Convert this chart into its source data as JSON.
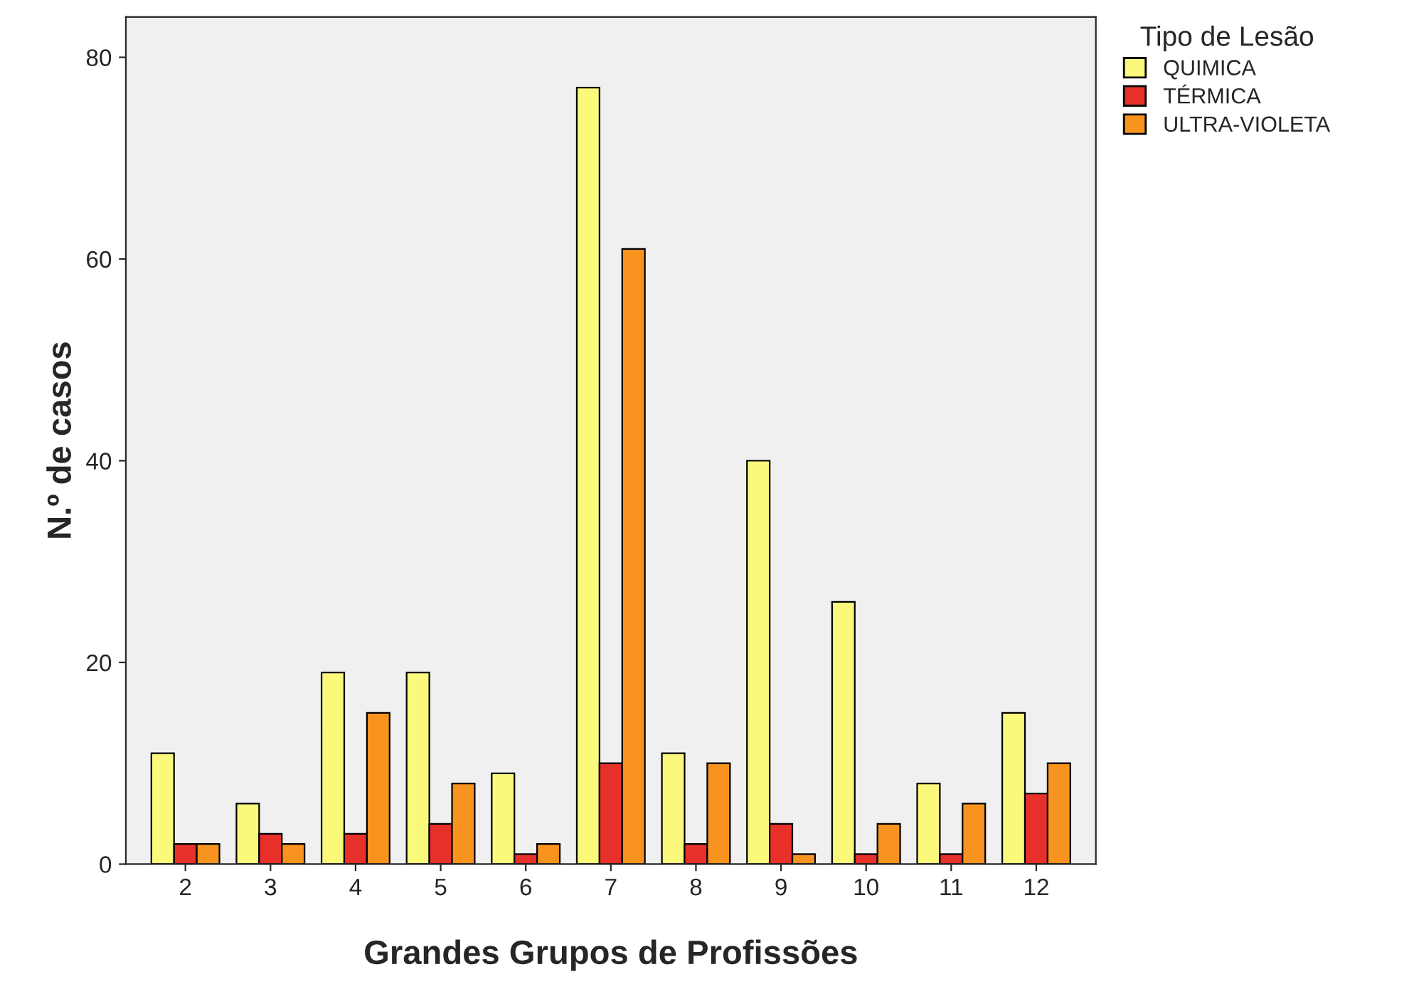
{
  "chart_data": {
    "type": "bar",
    "xlabel": "Grandes Grupos de Profissões",
    "ylabel": "N.º de casos",
    "legend_title": "Tipo de Lesão",
    "categories": [
      "2",
      "3",
      "4",
      "5",
      "6",
      "7",
      "8",
      "9",
      "10",
      "11",
      "12"
    ],
    "series": [
      {
        "name": "QUIMICA",
        "color": "#fbf97c",
        "values": [
          11,
          6,
          19,
          19,
          9,
          77,
          11,
          40,
          26,
          8,
          15
        ]
      },
      {
        "name": "TÉRMICA",
        "color": "#e8302a",
        "values": [
          2,
          3,
          3,
          4,
          1,
          10,
          2,
          4,
          1,
          1,
          7
        ]
      },
      {
        "name": "ULTRA-VIOLETA",
        "color": "#f7931e",
        "values": [
          2,
          2,
          15,
          8,
          2,
          61,
          10,
          1,
          4,
          6,
          10
        ]
      }
    ],
    "ylim": [
      0,
      84
    ],
    "yticks": [
      0,
      20,
      40,
      60,
      80
    ],
    "grid": false,
    "legend": "right"
  }
}
